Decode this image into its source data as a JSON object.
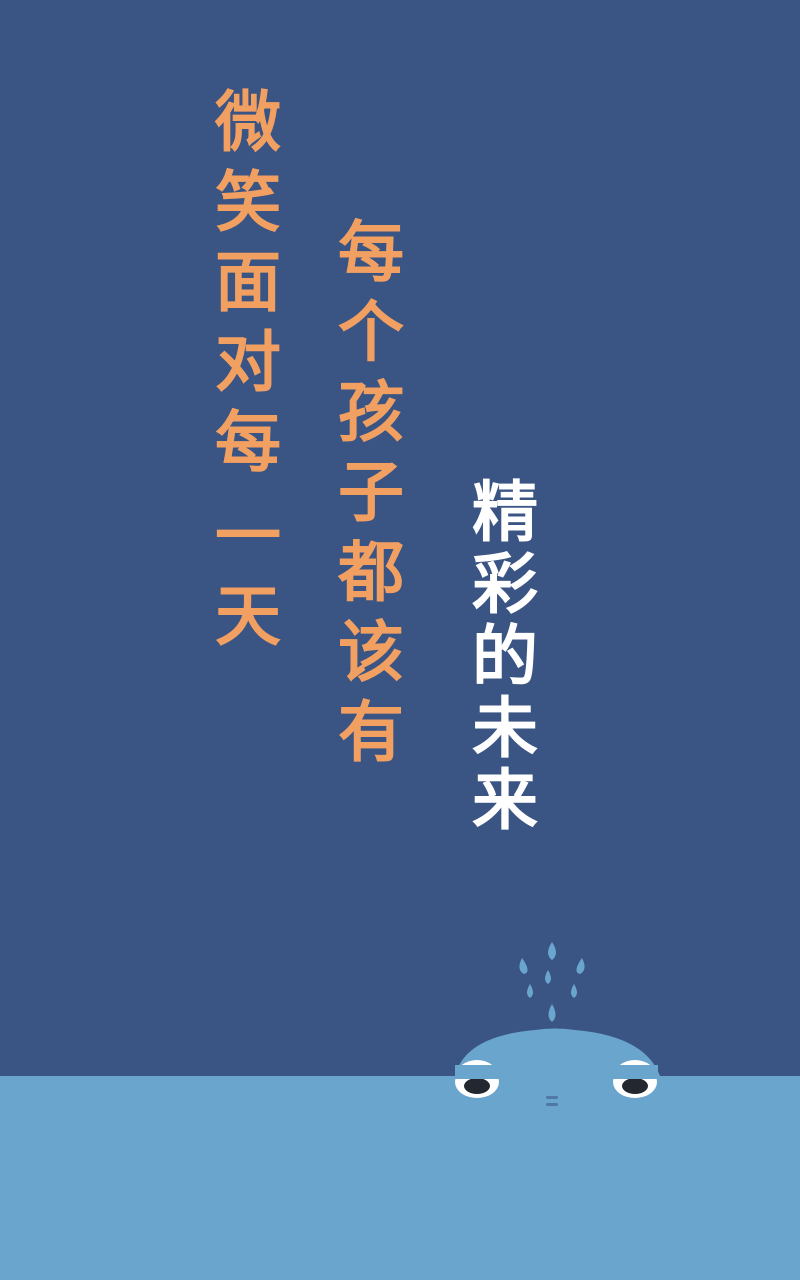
{
  "poster": {
    "line1": [
      "微",
      "笑",
      "面",
      "对",
      "每",
      "一",
      "天"
    ],
    "line2": [
      "每",
      "个",
      "孩",
      "子",
      "都",
      "该",
      "有"
    ],
    "line3": [
      "精",
      "彩",
      "的",
      "未",
      "来"
    ]
  },
  "colors": {
    "background": "#3a5484",
    "water": "#6aa5cd",
    "accent_text": "#f2a062",
    "highlight_text": "#ffffff",
    "whale": "#6aa5cd"
  }
}
